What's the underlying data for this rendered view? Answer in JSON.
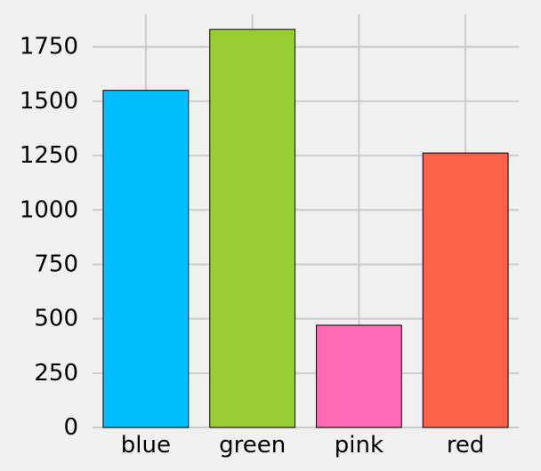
{
  "chart_data": {
    "type": "bar",
    "title": "",
    "xlabel": "",
    "ylabel": "",
    "categories": [
      "blue",
      "green",
      "pink",
      "red"
    ],
    "values": [
      1550,
      1830,
      470,
      1262
    ],
    "bar_colors": [
      "#00bfff",
      "#9acd32",
      "#ff69b4",
      "#ff6347"
    ],
    "bar_edge_color": "#000000",
    "ylim": [
      0,
      1900
    ],
    "yticks": [
      0,
      250,
      500,
      750,
      1000,
      1250,
      1500,
      1750
    ],
    "grid": true,
    "grid_color": "#cbcbcb",
    "background_color": "#f0f0f0"
  }
}
